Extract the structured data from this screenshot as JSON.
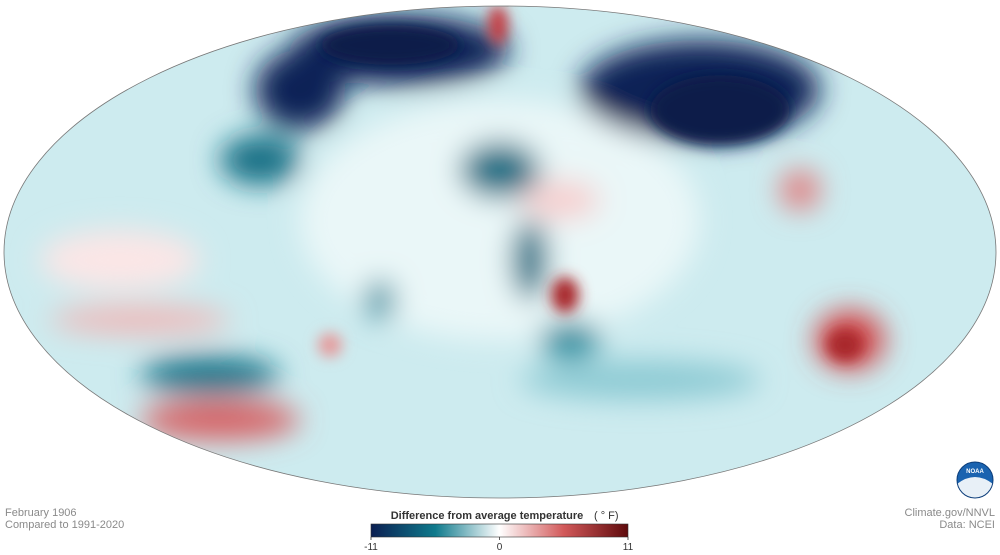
{
  "caption": {
    "date": "February 1906",
    "baseline": "Compared to 1991-2020"
  },
  "legend": {
    "title": "Difference from average temperature",
    "unit": "( ° F)",
    "range": [
      -11,
      11
    ],
    "ticks": [
      -11,
      0,
      11
    ]
  },
  "credits": {
    "source": "Climate.gov/NNVL",
    "data": "Data: NCEI",
    "logo": "NOAA"
  }
}
